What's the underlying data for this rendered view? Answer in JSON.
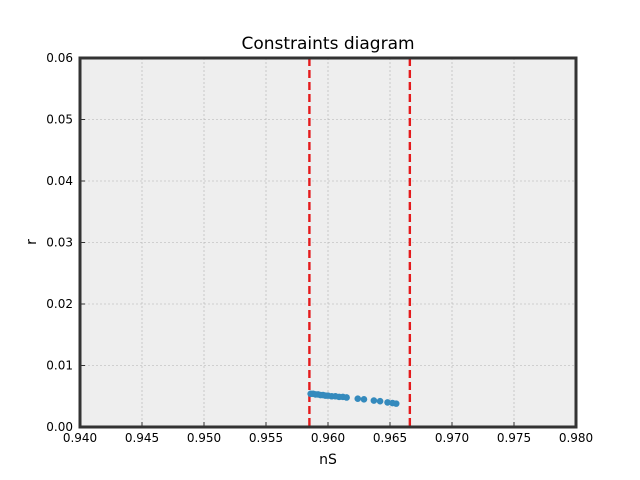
{
  "chart_data": {
    "type": "scatter",
    "title": "Constraints diagram",
    "xlabel": "nS",
    "ylabel": "r",
    "xlim": [
      0.94,
      0.98
    ],
    "ylim": [
      0.0,
      0.06
    ],
    "x_ticks": [
      "0.940",
      "0.945",
      "0.950",
      "0.955",
      "0.960",
      "0.965",
      "0.970",
      "0.975",
      "0.980"
    ],
    "y_ticks": [
      "0.00",
      "0.01",
      "0.02",
      "0.03",
      "0.04",
      "0.05",
      "0.06"
    ],
    "x_tick_values": [
      0.94,
      0.945,
      0.95,
      0.955,
      0.96,
      0.965,
      0.97,
      0.975,
      0.98
    ],
    "y_tick_values": [
      0.0,
      0.01,
      0.02,
      0.03,
      0.04,
      0.05,
      0.06
    ],
    "grid": true,
    "vertical_lines": [
      {
        "x": 0.9585,
        "color": "#e41a1c",
        "style": "dashed"
      },
      {
        "x": 0.9666,
        "color": "#e41a1c",
        "style": "dashed"
      }
    ],
    "series": [
      {
        "color": "#348abd",
        "points": [
          {
            "x": 0.9586,
            "y": 0.0054
          },
          {
            "x": 0.9588,
            "y": 0.0054
          },
          {
            "x": 0.959,
            "y": 0.0053
          },
          {
            "x": 0.9592,
            "y": 0.0053
          },
          {
            "x": 0.9594,
            "y": 0.0052
          },
          {
            "x": 0.9596,
            "y": 0.0052
          },
          {
            "x": 0.9598,
            "y": 0.0051
          },
          {
            "x": 0.96,
            "y": 0.0051
          },
          {
            "x": 0.9603,
            "y": 0.005
          },
          {
            "x": 0.9606,
            "y": 0.005
          },
          {
            "x": 0.9609,
            "y": 0.0049
          },
          {
            "x": 0.9612,
            "y": 0.0049
          },
          {
            "x": 0.9615,
            "y": 0.0048
          },
          {
            "x": 0.9624,
            "y": 0.0046
          },
          {
            "x": 0.9629,
            "y": 0.0045
          },
          {
            "x": 0.9637,
            "y": 0.0043
          },
          {
            "x": 0.9642,
            "y": 0.0042
          },
          {
            "x": 0.9648,
            "y": 0.004
          },
          {
            "x": 0.9652,
            "y": 0.0039
          },
          {
            "x": 0.9655,
            "y": 0.0038
          }
        ]
      }
    ]
  }
}
